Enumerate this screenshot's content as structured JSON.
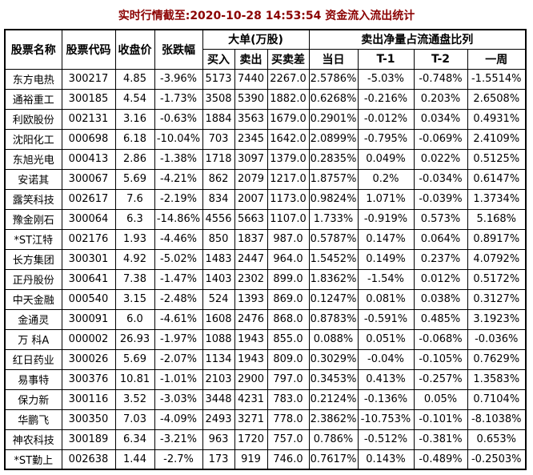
{
  "title": "实时行情截至:2020-10-28 14:53:54 资金流入流出统计",
  "colors": {
    "title_red": "#8B0000",
    "stock_link_blue": "#15517F",
    "border_black": "#000000",
    "background": "#FFFFFF"
  },
  "table": {
    "headers": {
      "name": "股票名称",
      "code": "股票代码",
      "close": "收盘价",
      "change": "张跌幅",
      "big_order_group": "大单(万股)",
      "buy": "买入",
      "sell": "卖出",
      "diff": "买卖差",
      "sell_ratio_group": "卖出净量占流通盘比列",
      "day": "当日",
      "t1": "T-1",
      "t2": "T-2",
      "week": "一周"
    },
    "column_keys": [
      "stock-name",
      "stock-code",
      "close-price",
      "change-pct",
      "buy-volume",
      "sell-volume",
      "buy-sell-diff",
      "day-ratio",
      "t1-ratio",
      "t2-ratio",
      "week-ratio"
    ],
    "rows": [
      [
        "东方电热",
        "300217",
        "4.85",
        "-3.96%",
        "5173",
        "7440",
        "2267.0",
        "2.5786%",
        "-5.03%",
        "-0.748%",
        "-1.5514%"
      ],
      [
        "通裕重工",
        "300185",
        "4.54",
        "-1.73%",
        "3508",
        "5390",
        "1882.0",
        "0.6268%",
        "-0.216%",
        "0.203%",
        "2.6508%"
      ],
      [
        "利欧股份",
        "002131",
        "3.16",
        "-0.63%",
        "1884",
        "3563",
        "1679.0",
        "0.2901%",
        "-0.012%",
        "0.034%",
        "0.4931%"
      ],
      [
        "沈阳化工",
        "000698",
        "6.18",
        "-10.04%",
        "703",
        "2345",
        "1642.0",
        "2.0899%",
        "-0.795%",
        "-0.069%",
        "2.4109%"
      ],
      [
        "东旭光电",
        "000413",
        "2.86",
        "-1.38%",
        "1718",
        "3097",
        "1379.0",
        "0.2835%",
        "0.049%",
        "0.022%",
        "0.5125%"
      ],
      [
        "安诺其",
        "300067",
        "5.69",
        "-4.21%",
        "862",
        "2079",
        "1217.0",
        "1.8757%",
        "0.2%",
        "-0.034%",
        "0.6147%"
      ],
      [
        "露笑科技",
        "002617",
        "7.6",
        "-2.19%",
        "834",
        "2007",
        "1173.0",
        "0.9824%",
        "1.071%",
        "-0.039%",
        "1.3734%"
      ],
      [
        "豫金刚石",
        "300064",
        "6.3",
        "-14.86%",
        "4556",
        "5663",
        "1107.0",
        "1.733%",
        "-0.919%",
        "0.573%",
        "5.168%"
      ],
      [
        "*ST江特",
        "002176",
        "1.93",
        "-4.46%",
        "850",
        "1837",
        "987.0",
        "0.5787%",
        "0.147%",
        "0.064%",
        "0.8917%"
      ],
      [
        "长方集团",
        "300301",
        "4.92",
        "-5.02%",
        "1483",
        "2447",
        "964.0",
        "1.5452%",
        "0.149%",
        "0.237%",
        "4.0792%"
      ],
      [
        "正丹股份",
        "300641",
        "7.38",
        "-1.47%",
        "1403",
        "2302",
        "899.0",
        "1.8362%",
        "-1.54%",
        "0.012%",
        "0.5172%"
      ],
      [
        "中天金融",
        "000540",
        "3.15",
        "-2.48%",
        "524",
        "1393",
        "869.0",
        "0.1247%",
        "0.081%",
        "0.038%",
        "0.3127%"
      ],
      [
        "金通灵",
        "300091",
        "6.0",
        "-4.61%",
        "1608",
        "2476",
        "868.0",
        "0.8783%",
        "-0.591%",
        "0.485%",
        "3.1923%"
      ],
      [
        "万 科A",
        "000002",
        "26.93",
        "-1.97%",
        "1088",
        "1943",
        "855.0",
        "0.088%",
        "0.051%",
        "-0.068%",
        "-0.036%"
      ],
      [
        "红日药业",
        "300026",
        "5.69",
        "-2.07%",
        "1134",
        "1943",
        "809.0",
        "0.3029%",
        "-0.04%",
        "-0.105%",
        "0.7629%"
      ],
      [
        "易事特",
        "300376",
        "10.81",
        "-1.01%",
        "2103",
        "2900",
        "797.0",
        "0.3453%",
        "0.413%",
        "-0.257%",
        "1.3583%"
      ],
      [
        "保力新",
        "300116",
        "3.52",
        "-3.03%",
        "3448",
        "4231",
        "783.0",
        "0.2124%",
        "-0.136%",
        "0.05%",
        "0.7104%"
      ],
      [
        "华鹏飞",
        "300350",
        "7.03",
        "-4.09%",
        "2493",
        "3271",
        "778.0",
        "2.3862%",
        "-10.753%",
        "-0.101%",
        "-8.1038%"
      ],
      [
        "神农科技",
        "300189",
        "6.34",
        "-3.21%",
        "963",
        "1720",
        "757.0",
        "0.786%",
        "-0.512%",
        "-0.381%",
        "0.653%"
      ],
      [
        "*ST勤上",
        "002638",
        "1.44",
        "-2.7%",
        "173",
        "919",
        "746.0",
        "0.7617%",
        "0.143%",
        "-0.489%",
        "-0.2503%"
      ]
    ]
  }
}
